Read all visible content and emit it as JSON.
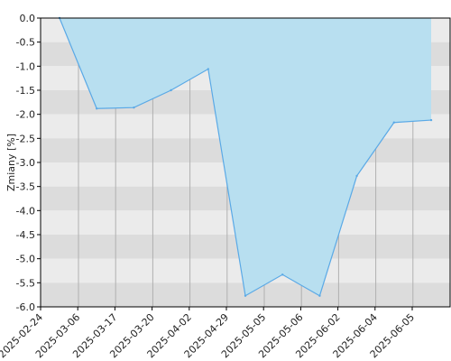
{
  "chart_data": {
    "type": "area",
    "title": "",
    "xlabel": "",
    "ylabel": "Zmiany [%]",
    "ylim": [
      -6.0,
      0.0
    ],
    "y_ticks": [
      "0.0",
      "-0.5",
      "-1.0",
      "-1.5",
      "-2.0",
      "-2.5",
      "-3.0",
      "-3.5",
      "-4.0",
      "-4.5",
      "-5.0",
      "-5.5",
      "-6.0"
    ],
    "x_tick_labels": [
      "2025-02-24",
      "2025-03-06",
      "2025-03-17",
      "2025-03-20",
      "2025-04-02",
      "2025-04-29",
      "2025-05-05",
      "2025-05-06",
      "2025-06-02",
      "2025-06-04",
      "2025-06-05"
    ],
    "x": [
      "2025-02-24",
      "2025-03-06",
      "2025-03-17",
      "2025-03-20",
      "2025-04-02",
      "2025-04-29",
      "2025-05-05",
      "2025-05-06",
      "2025-06-02",
      "2025-06-04",
      "2025-06-05"
    ],
    "series": [
      {
        "values": [
          0.0,
          -1.88,
          -1.86,
          -1.5,
          -1.06,
          -5.77,
          -5.33,
          -5.77,
          -3.28,
          -2.17,
          -2.12
        ]
      }
    ],
    "grid": true,
    "band_colors": [
      "#ebebeb",
      "#dcdcdc"
    ],
    "fill_color": "#b8dff0",
    "line_color": "#5aa9e6"
  }
}
